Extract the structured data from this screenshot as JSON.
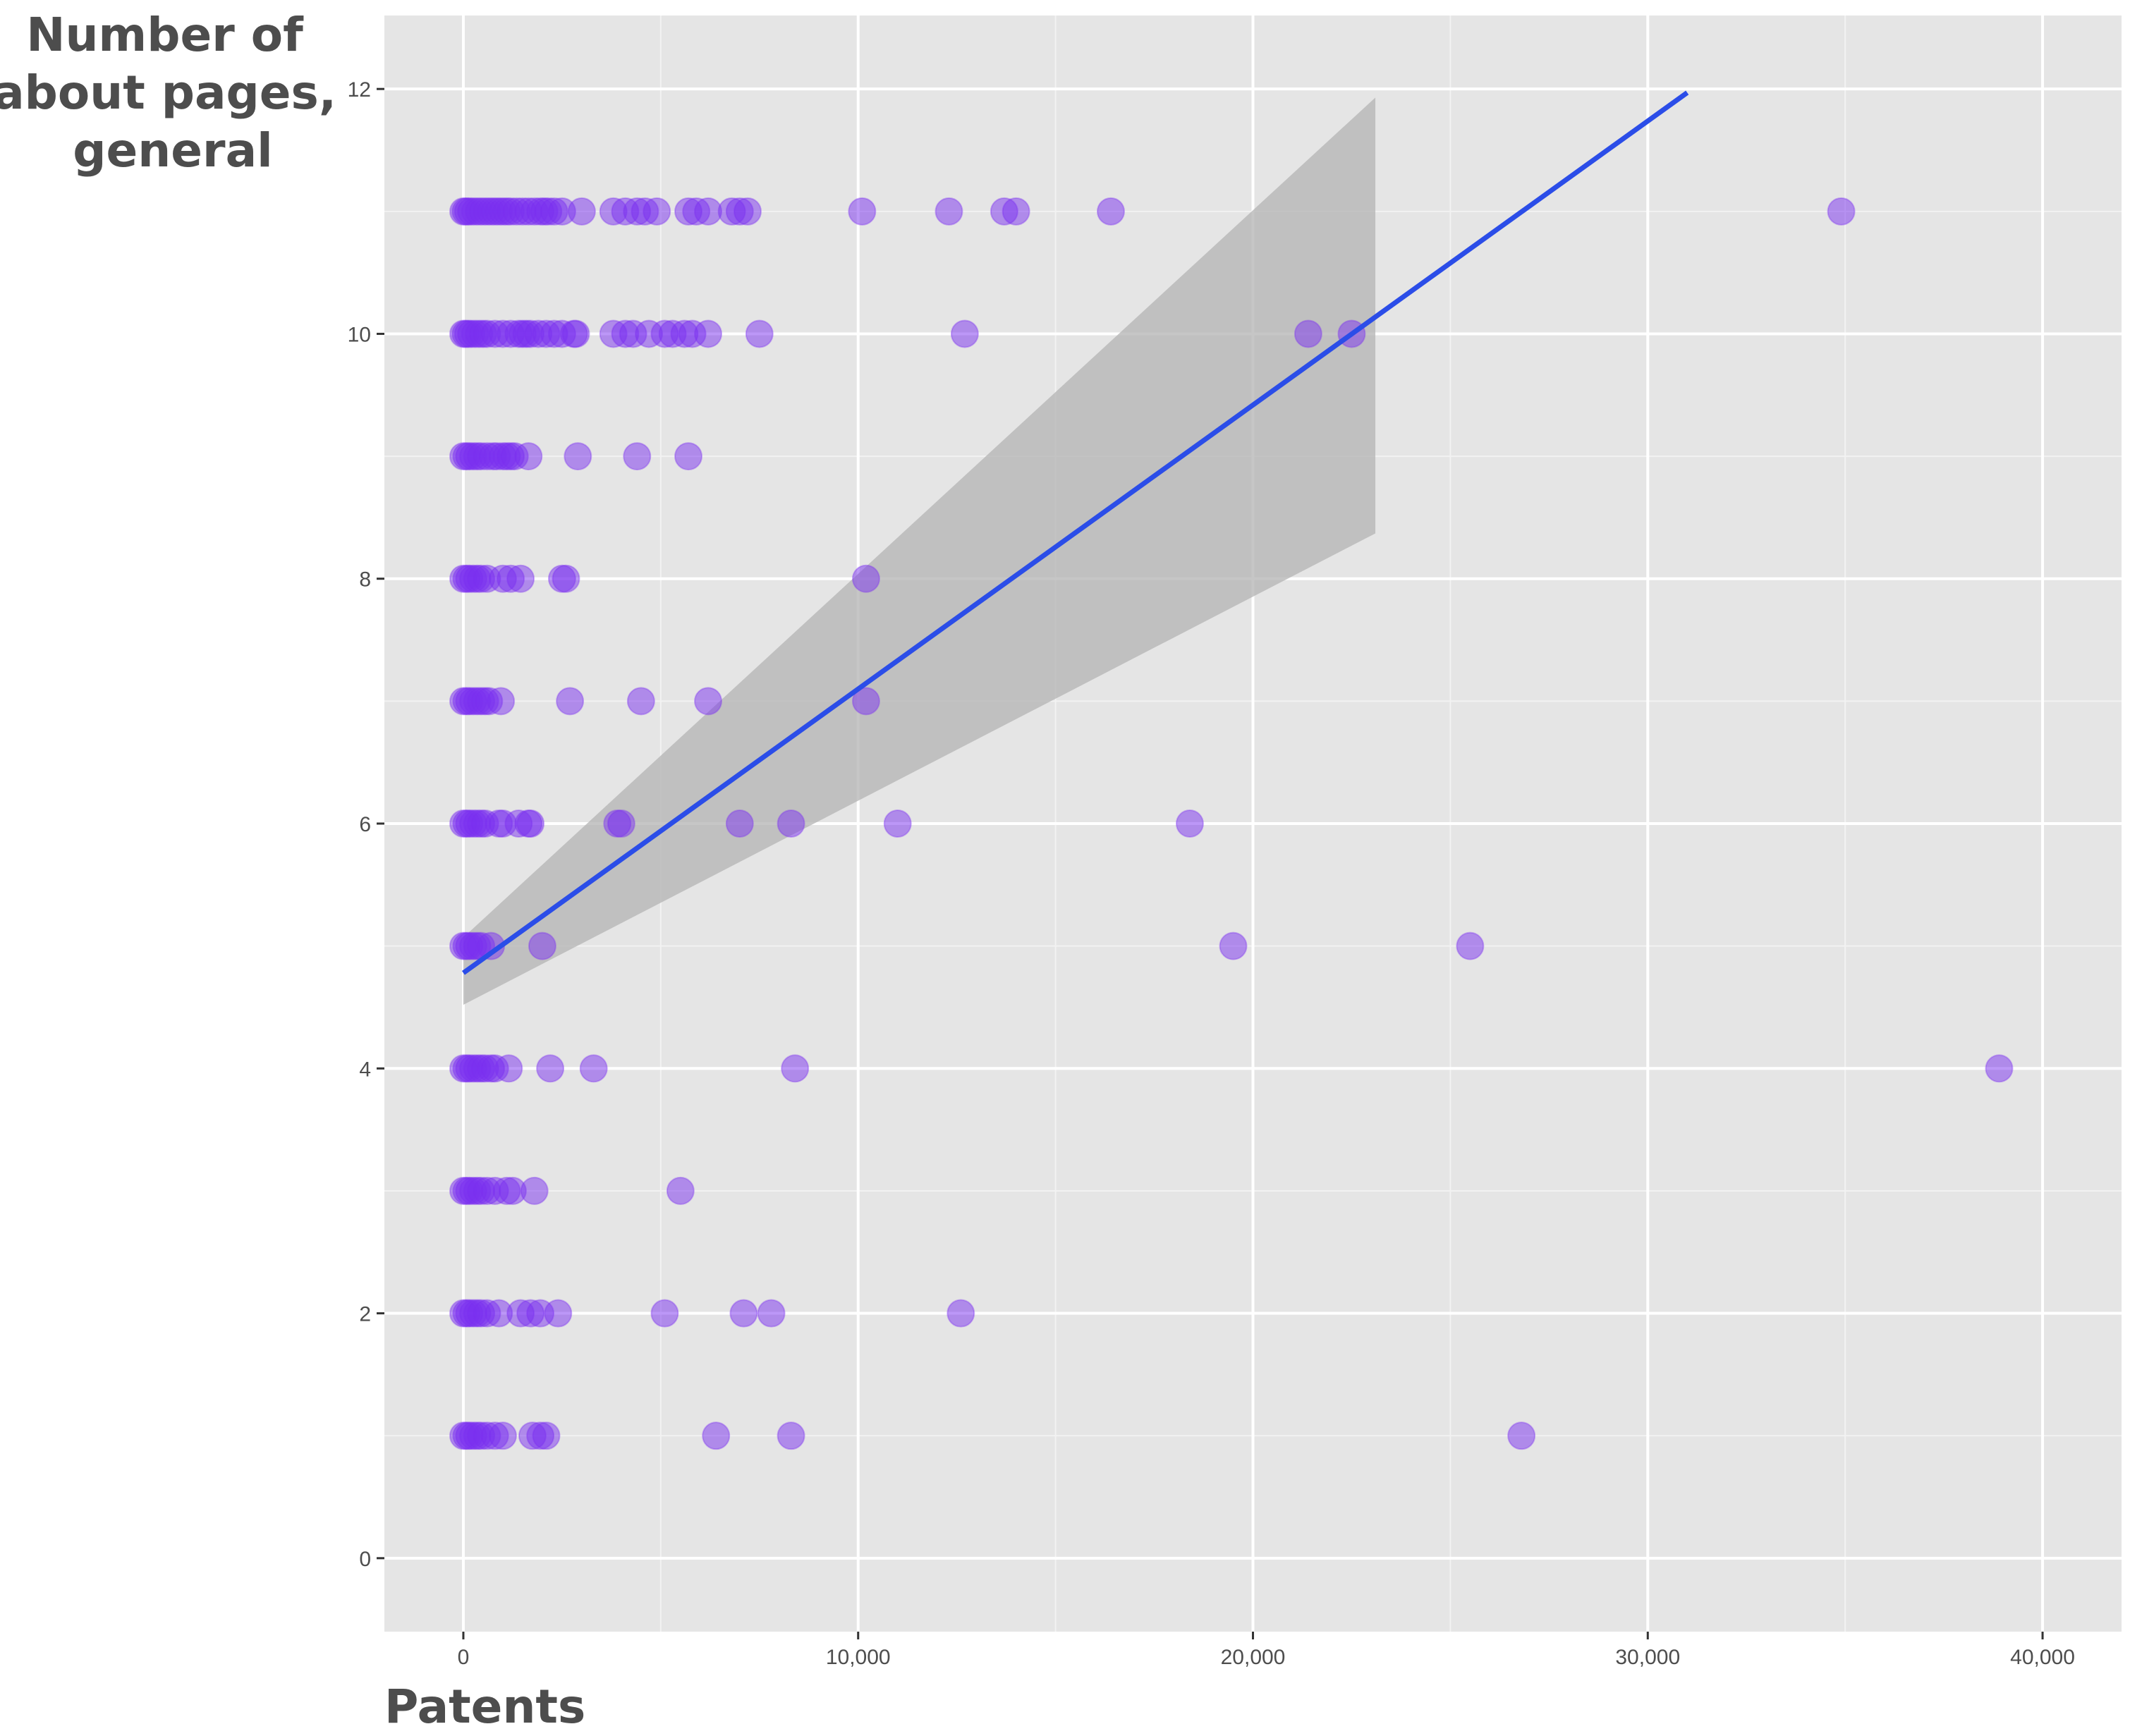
{
  "chart_data": {
    "type": "scatter",
    "title": "",
    "xlabel": "Patents",
    "ylabel_lines": [
      "Number of",
      "about pages,",
      "general"
    ],
    "xlim": [
      -2000,
      42000
    ],
    "ylim": [
      -0.6,
      12.6
    ],
    "x_ticks": [
      0,
      10000,
      20000,
      30000,
      40000
    ],
    "x_tick_labels": [
      "0",
      "10,000",
      "20,000",
      "30,000",
      "40,000"
    ],
    "y_ticks": [
      0,
      2,
      4,
      6,
      8,
      10,
      12
    ],
    "y_tick_labels": [
      "0",
      "2",
      "4",
      "6",
      "8",
      "10",
      "12"
    ],
    "grid": true,
    "colors": {
      "panel_background": "#e5e5e5",
      "grid_major": "#ffffff",
      "grid_minor": "#f2f2f2",
      "point_fill": "#7a2ff0",
      "point_opacity": 0.5,
      "trend_line": "#2b4de8",
      "confidence_band": "#b3b3b3"
    },
    "series": [
      {
        "values": [
          [
            0,
            11
          ],
          [
            60,
            11
          ],
          [
            120,
            11
          ],
          [
            200,
            11
          ],
          [
            300,
            11
          ],
          [
            400,
            11
          ],
          [
            500,
            11
          ],
          [
            600,
            11
          ],
          [
            700,
            11
          ],
          [
            800,
            11
          ],
          [
            900,
            11
          ],
          [
            1000,
            11
          ],
          [
            1100,
            11
          ],
          [
            1200,
            11
          ],
          [
            1350,
            11
          ],
          [
            1500,
            11
          ],
          [
            1650,
            11
          ],
          [
            1800,
            11
          ],
          [
            1950,
            11
          ],
          [
            2050,
            11
          ],
          [
            2150,
            11
          ],
          [
            2300,
            11
          ],
          [
            2500,
            11
          ],
          [
            3000,
            11
          ],
          [
            3800,
            11
          ],
          [
            4100,
            11
          ],
          [
            4400,
            11
          ],
          [
            4600,
            11
          ],
          [
            4900,
            11
          ],
          [
            5700,
            11
          ],
          [
            5900,
            11
          ],
          [
            6200,
            11
          ],
          [
            6800,
            11
          ],
          [
            7000,
            11
          ],
          [
            7200,
            11
          ],
          [
            10100,
            11
          ],
          [
            12300,
            11
          ],
          [
            13700,
            11
          ],
          [
            14000,
            11
          ],
          [
            16400,
            11
          ],
          [
            34900,
            11
          ],
          [
            0,
            10
          ],
          [
            60,
            10
          ],
          [
            120,
            10
          ],
          [
            200,
            10
          ],
          [
            300,
            10
          ],
          [
            400,
            10
          ],
          [
            500,
            10
          ],
          [
            600,
            10
          ],
          [
            800,
            10
          ],
          [
            1000,
            10
          ],
          [
            1200,
            10
          ],
          [
            1400,
            10
          ],
          [
            1500,
            10
          ],
          [
            1600,
            10
          ],
          [
            1700,
            10
          ],
          [
            1900,
            10
          ],
          [
            2100,
            10
          ],
          [
            2300,
            10
          ],
          [
            2500,
            10
          ],
          [
            2800,
            10
          ],
          [
            2850,
            10
          ],
          [
            3800,
            10
          ],
          [
            4100,
            10
          ],
          [
            4300,
            10
          ],
          [
            4700,
            10
          ],
          [
            5100,
            10
          ],
          [
            5300,
            10
          ],
          [
            5600,
            10
          ],
          [
            5800,
            10
          ],
          [
            6200,
            10
          ],
          [
            7500,
            10
          ],
          [
            12700,
            10
          ],
          [
            21400,
            10
          ],
          [
            22500,
            10
          ],
          [
            0,
            9
          ],
          [
            80,
            9
          ],
          [
            150,
            9
          ],
          [
            250,
            9
          ],
          [
            350,
            9
          ],
          [
            450,
            9
          ],
          [
            600,
            9
          ],
          [
            750,
            9
          ],
          [
            850,
            9
          ],
          [
            1000,
            9
          ],
          [
            1100,
            9
          ],
          [
            1200,
            9
          ],
          [
            1300,
            9
          ],
          [
            1650,
            9
          ],
          [
            2900,
            9
          ],
          [
            4400,
            9
          ],
          [
            5700,
            9
          ],
          [
            0,
            8
          ],
          [
            80,
            8
          ],
          [
            150,
            8
          ],
          [
            250,
            8
          ],
          [
            350,
            8
          ],
          [
            450,
            8
          ],
          [
            600,
            8
          ],
          [
            1000,
            8
          ],
          [
            1200,
            8
          ],
          [
            1450,
            8
          ],
          [
            2500,
            8
          ],
          [
            2600,
            8
          ],
          [
            10200,
            8
          ],
          [
            0,
            7
          ],
          [
            80,
            7
          ],
          [
            150,
            7
          ],
          [
            250,
            7
          ],
          [
            350,
            7
          ],
          [
            450,
            7
          ],
          [
            550,
            7
          ],
          [
            650,
            7
          ],
          [
            950,
            7
          ],
          [
            2700,
            7
          ],
          [
            4500,
            7
          ],
          [
            6200,
            7
          ],
          [
            10200,
            7
          ],
          [
            0,
            6
          ],
          [
            80,
            6
          ],
          [
            150,
            6
          ],
          [
            250,
            6
          ],
          [
            350,
            6
          ],
          [
            450,
            6
          ],
          [
            550,
            6
          ],
          [
            900,
            6
          ],
          [
            1000,
            6
          ],
          [
            1400,
            6
          ],
          [
            1650,
            6
          ],
          [
            1700,
            6
          ],
          [
            3900,
            6
          ],
          [
            4000,
            6
          ],
          [
            7000,
            6
          ],
          [
            8300,
            6
          ],
          [
            11000,
            6
          ],
          [
            18400,
            6
          ],
          [
            0,
            5
          ],
          [
            80,
            5
          ],
          [
            150,
            5
          ],
          [
            250,
            5
          ],
          [
            350,
            5
          ],
          [
            450,
            5
          ],
          [
            700,
            5
          ],
          [
            2000,
            5
          ],
          [
            19500,
            5
          ],
          [
            25500,
            5
          ],
          [
            0,
            4
          ],
          [
            80,
            4
          ],
          [
            150,
            4
          ],
          [
            250,
            4
          ],
          [
            350,
            4
          ],
          [
            450,
            4
          ],
          [
            550,
            4
          ],
          [
            700,
            4
          ],
          [
            800,
            4
          ],
          [
            1150,
            4
          ],
          [
            2200,
            4
          ],
          [
            3300,
            4
          ],
          [
            8400,
            4
          ],
          [
            38900,
            4
          ],
          [
            0,
            3
          ],
          [
            80,
            3
          ],
          [
            150,
            3
          ],
          [
            250,
            3
          ],
          [
            350,
            3
          ],
          [
            450,
            3
          ],
          [
            600,
            3
          ],
          [
            800,
            3
          ],
          [
            1100,
            3
          ],
          [
            1250,
            3
          ],
          [
            1800,
            3
          ],
          [
            5500,
            3
          ],
          [
            0,
            2
          ],
          [
            80,
            2
          ],
          [
            150,
            2
          ],
          [
            250,
            2
          ],
          [
            350,
            2
          ],
          [
            450,
            2
          ],
          [
            600,
            2
          ],
          [
            900,
            2
          ],
          [
            1450,
            2
          ],
          [
            1700,
            2
          ],
          [
            1950,
            2
          ],
          [
            2400,
            2
          ],
          [
            5100,
            2
          ],
          [
            7100,
            2
          ],
          [
            7800,
            2
          ],
          [
            12600,
            2
          ],
          [
            0,
            1
          ],
          [
            80,
            1
          ],
          [
            150,
            1
          ],
          [
            250,
            1
          ],
          [
            350,
            1
          ],
          [
            450,
            1
          ],
          [
            600,
            1
          ],
          [
            800,
            1
          ],
          [
            1000,
            1
          ],
          [
            1750,
            1
          ],
          [
            1950,
            1
          ],
          [
            2100,
            1
          ],
          [
            6400,
            1
          ],
          [
            8300,
            1
          ],
          [
            26800,
            1
          ]
        ]
      }
    ],
    "trend": {
      "method": "linear fit",
      "x_range": [
        0,
        31000
      ],
      "y_at_start": 4.78,
      "y_at_end": 11.97,
      "band_x_range": [
        0,
        23100
      ],
      "band_lower_at_start": 4.52,
      "band_upper_at_start": 5.07,
      "band_lower_at_end": 8.37,
      "band_upper_at_end": 11.93
    }
  }
}
